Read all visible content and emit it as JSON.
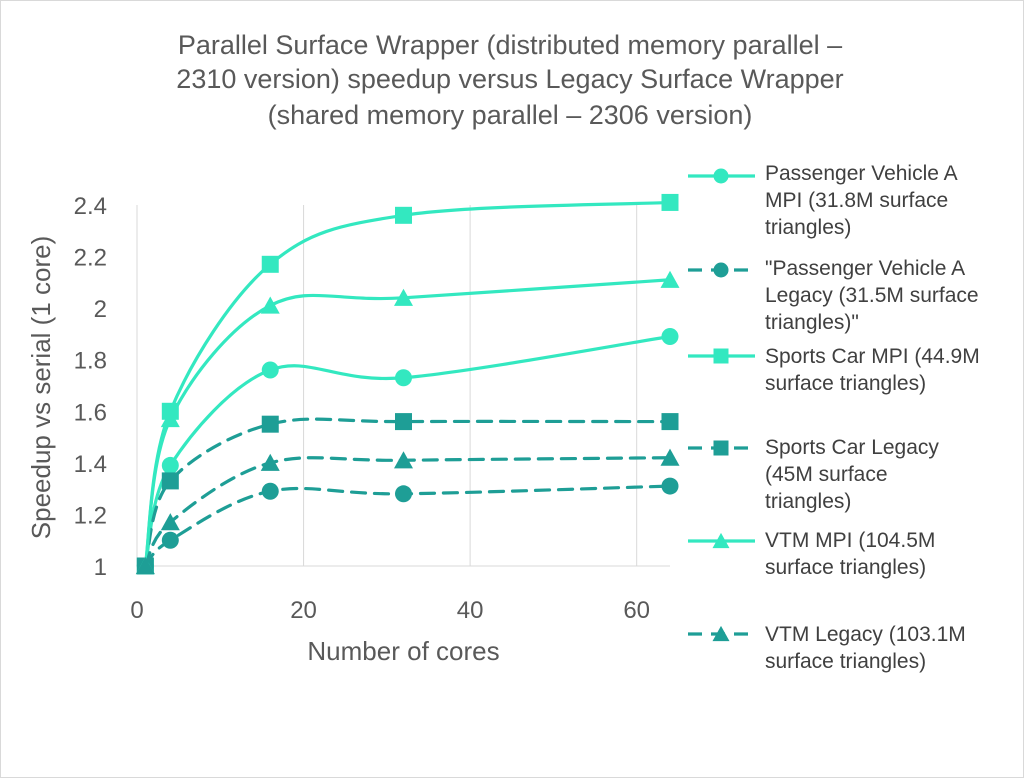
{
  "chart_data": {
    "type": "line",
    "title_lines": [
      "Parallel Surface Wrapper (distributed memory parallel –",
      "2310 version) speedup versus Legacy Surface Wrapper",
      "(shared memory parallel – 2306 version)"
    ],
    "xlabel": "Number of cores",
    "ylabel": "Speedup vs serial  (1 core)",
    "xlim": [
      0,
      64
    ],
    "ylim": [
      1,
      2.4
    ],
    "xticks": [
      0,
      20,
      40,
      60
    ],
    "xtick_labels": [
      "0",
      "20",
      "40",
      "60"
    ],
    "yticks": [
      1,
      1.2,
      1.4,
      1.6,
      1.8,
      2,
      2.2,
      2.4
    ],
    "ytick_labels": [
      "1",
      "1.2",
      "1.4",
      "1.6",
      "1.8",
      "2",
      "2.2",
      "2.4"
    ],
    "grid": "vertical",
    "legend_position": "right",
    "x": [
      1,
      4,
      16,
      32,
      64
    ],
    "series": [
      {
        "name": "Passenger Vehicle A MPI (31.8M surface triangles)",
        "legend_lines": [
          "Passenger Vehicle A",
          "MPI (31.8M surface",
          "triangles)"
        ],
        "values": [
          1.0,
          1.39,
          1.76,
          1.73,
          1.89
        ],
        "marker": "circle",
        "dash": "solid",
        "color": "#33E8C0"
      },
      {
        "name": "\"Passenger Vehicle A Legacy (31.5M surface triangles)\"",
        "legend_lines": [
          "\"Passenger Vehicle A",
          "Legacy (31.5M surface",
          "triangles)\""
        ],
        "values": [
          1.0,
          1.1,
          1.29,
          1.28,
          1.31
        ],
        "marker": "circle",
        "dash": "dashed",
        "color": "#1E9E96"
      },
      {
        "name": "Sports Car MPI (44.9M surface triangles)",
        "legend_lines": [
          "Sports Car MPI (44.9M",
          "surface triangles)"
        ],
        "values": [
          1.0,
          1.6,
          2.17,
          2.36,
          2.41
        ],
        "marker": "square",
        "dash": "solid",
        "color": "#33E8C0"
      },
      {
        "name": "Sports Car Legacy (45M surface triangles)",
        "legend_lines": [
          "Sports Car Legacy",
          "(45M surface",
          "triangles)"
        ],
        "values": [
          1.0,
          1.33,
          1.55,
          1.56,
          1.56
        ],
        "marker": "square",
        "dash": "dashed",
        "color": "#1E9E96"
      },
      {
        "name": "VTM MPI (104.5M surface triangles)",
        "legend_lines": [
          "VTM MPI (104.5M",
          "surface triangles)"
        ],
        "values": [
          1.0,
          1.57,
          2.01,
          2.04,
          2.11
        ],
        "marker": "triangle",
        "dash": "solid",
        "color": "#33E8C0"
      },
      {
        "name": "VTM Legacy (103.1M surface triangles)",
        "legend_lines": [
          "VTM Legacy (103.1M",
          "surface triangles)"
        ],
        "values": [
          1.0,
          1.17,
          1.4,
          1.41,
          1.42
        ],
        "marker": "triangle",
        "dash": "dashed",
        "color": "#1E9E96"
      }
    ]
  }
}
